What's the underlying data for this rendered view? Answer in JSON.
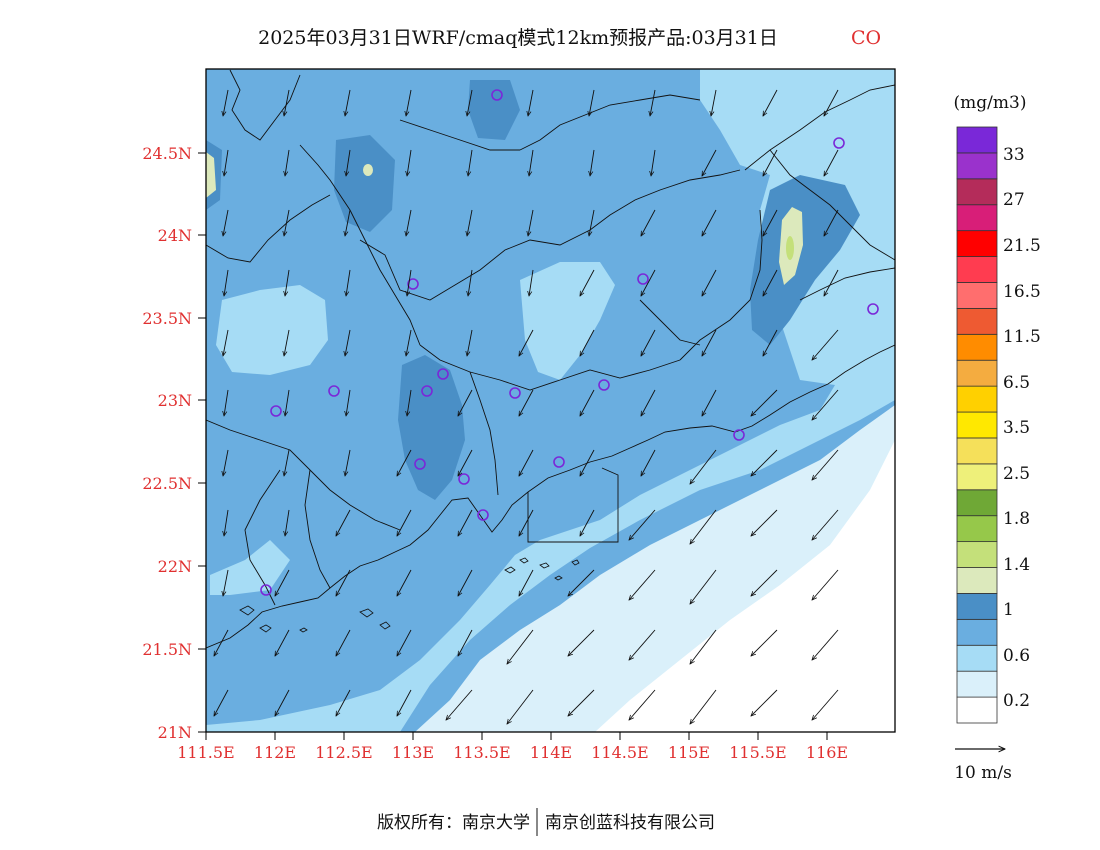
{
  "title": {
    "main": "2025年03月31日WRF/cmaq模式12km预报产品:03月31日",
    "species": "CO",
    "species_color": "#e03030"
  },
  "map": {
    "lat_ticks": [
      "21N",
      "21.5N",
      "22N",
      "22.5N",
      "23N",
      "23.5N",
      "24N",
      "24.5N"
    ],
    "lon_ticks": [
      "111.5E",
      "112E",
      "112.5E",
      "113E",
      "113.5E",
      "114E",
      "114.5E",
      "115E",
      "115.5E",
      "116E"
    ],
    "tick_color": "#e03030",
    "lat_range": [
      21,
      25
    ],
    "lon_range": [
      111.5,
      116.5
    ]
  },
  "legend": {
    "unit": "(mg/m3)",
    "labels": [
      "0.2",
      "0.6",
      "1",
      "1.4",
      "1.8",
      "2.5",
      "3.5",
      "6.5",
      "11.5",
      "16.5",
      "21.5",
      "27",
      "33"
    ],
    "colors": [
      "#ffffff",
      "#daf0fa",
      "#a6dcf5",
      "#6aaee0",
      "#4a8fc6",
      "#dce9bc",
      "#c4e07a",
      "#96c84a",
      "#6fa836",
      "#eef07a",
      "#f5e05a",
      "#ffe800",
      "#ffd000",
      "#f4ac40",
      "#ff8c00",
      "#ee5a32",
      "#ff6e6e",
      "#ff3c50",
      "#ff0000",
      "#d81e78",
      "#b42c5a",
      "#9a32cc",
      "#7a28d8"
    ]
  },
  "wind": {
    "reference_label": "10 m/s"
  },
  "footer": {
    "copyright": "版权所有：南京大学",
    "company": "南京创蓝科技有限公司"
  }
}
